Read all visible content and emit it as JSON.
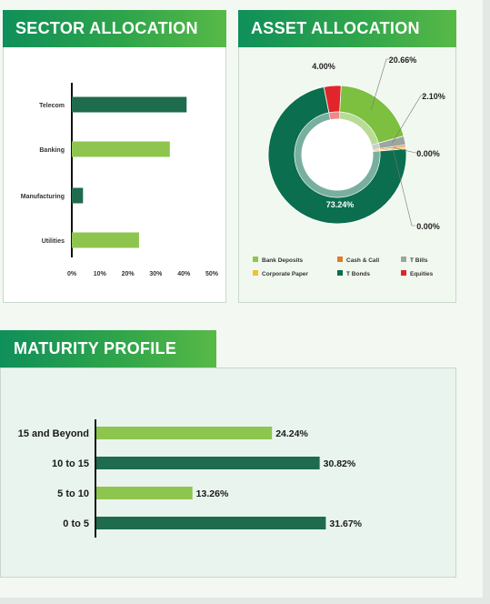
{
  "sector": {
    "title": "SECTOR ALLOCATION",
    "chart_data": {
      "type": "bar",
      "orientation": "horizontal",
      "title": "",
      "categories": [
        "Telecom",
        "Banking",
        "Manufacturing",
        "Utilities"
      ],
      "values": [
        41,
        35,
        4,
        24
      ],
      "colors": [
        "#1f6b4d",
        "#8dc54e",
        "#1f6b4d",
        "#8dc54e"
      ],
      "xlim": [
        0,
        50
      ],
      "ticks": [
        "0%",
        "10%",
        "20%",
        "30%",
        "40%",
        "50%"
      ],
      "xlabel": "",
      "ylabel": "",
      "grid": false
    }
  },
  "asset": {
    "title": "ASSET ALLOCATION",
    "chart_data": {
      "type": "pie",
      "donut": true,
      "title": "",
      "slices": [
        {
          "name": "Bank Deposits",
          "value": 20.66,
          "label": "20.66%",
          "color": "#7dbf3f"
        },
        {
          "name": "T Bills",
          "value": 2.1,
          "label": "2.10%",
          "color": "#9aa79f"
        },
        {
          "name": "Cash & Call",
          "value": 0.0,
          "label": "0.00%",
          "color": "#e07b2a"
        },
        {
          "name": "Corporate Paper",
          "value": 0.0,
          "label": "0.00%",
          "color": "#f2c12e"
        },
        {
          "name": "T Bonds",
          "value": 73.24,
          "label": "73.24%",
          "color": "#0a6e4f"
        },
        {
          "name": "Equities",
          "value": 4.0,
          "label": "4.00%",
          "color": "#e0262b"
        }
      ],
      "legend": [
        {
          "name": "Bank Deposits",
          "color": "#8dc54e"
        },
        {
          "name": "Cash & Call",
          "color": "#e07b2a"
        },
        {
          "name": "T Bills",
          "color": "#9aa79f"
        },
        {
          "name": "Corporate Paper",
          "color": "#f2c12e"
        },
        {
          "name": "T Bonds",
          "color": "#0a6e4f"
        },
        {
          "name": "Equities",
          "color": "#e0262b"
        }
      ],
      "legend_position": "bottom"
    }
  },
  "maturity": {
    "title": "MATURITY PROFILE",
    "chart_data": {
      "type": "bar",
      "orientation": "horizontal",
      "title": "",
      "categories": [
        "15 and Beyond",
        "10 to 15",
        "5 to 10",
        "0 to 5"
      ],
      "values": [
        24.24,
        30.82,
        13.26,
        31.67
      ],
      "labels": [
        "24.24%",
        "30.82%",
        "13.26%",
        "31.67%"
      ],
      "colors": [
        "#8dc54e",
        "#1f6b4d",
        "#8dc54e",
        "#1f6b4d"
      ],
      "xlim": [
        0,
        50
      ],
      "xlabel": "",
      "ylabel": "",
      "grid": false
    }
  }
}
